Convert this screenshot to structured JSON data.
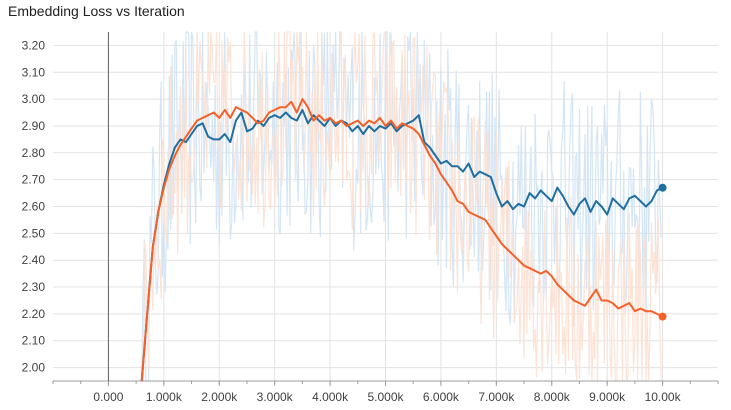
{
  "chart_data": {
    "type": "line",
    "title": "Embedding Loss vs Iteration",
    "xlabel": "",
    "ylabel": "",
    "xlim": [
      -1000,
      11000
    ],
    "ylim": [
      1.95,
      3.25
    ],
    "grid": true,
    "x_ticks": [
      0,
      1000,
      2000,
      3000,
      4000,
      5000,
      6000,
      7000,
      8000,
      9000,
      10000
    ],
    "x_tick_labels": [
      "0.000",
      "1.000k",
      "2.000k",
      "3.000k",
      "4.000k",
      "5.000k",
      "6.000k",
      "7.000k",
      "8.000k",
      "9.000k",
      "10.00k"
    ],
    "y_ticks": [
      2.0,
      2.1,
      2.2,
      2.3,
      2.4,
      2.5,
      2.6,
      2.7,
      2.8,
      2.9,
      3.0,
      3.1,
      3.2
    ],
    "y_tick_labels": [
      "2.00",
      "2.10",
      "2.20",
      "2.30",
      "2.40",
      "2.50",
      "2.60",
      "2.70",
      "2.80",
      "2.90",
      "3.00",
      "3.10",
      "3.20"
    ],
    "series": [
      {
        "color": "#1f6fa0",
        "raw_color": "#cfe3f5",
        "x": [
          600,
          700,
          800,
          900,
          1000,
          1100,
          1200,
          1300,
          1400,
          1500,
          1600,
          1700,
          1800,
          1900,
          2000,
          2100,
          2200,
          2300,
          2400,
          2500,
          2600,
          2700,
          2800,
          2900,
          3000,
          3100,
          3200,
          3300,
          3400,
          3500,
          3600,
          3700,
          3800,
          3900,
          4000,
          4100,
          4200,
          4300,
          4400,
          4500,
          4600,
          4700,
          4800,
          4900,
          5000,
          5100,
          5200,
          5300,
          5400,
          5500,
          5600,
          5700,
          5800,
          5900,
          6000,
          6100,
          6200,
          6300,
          6400,
          6500,
          6600,
          6700,
          6800,
          6900,
          7000,
          7100,
          7200,
          7300,
          7400,
          7500,
          7600,
          7700,
          7800,
          7900,
          8000,
          8100,
          8200,
          8300,
          8400,
          8500,
          8600,
          8700,
          8800,
          8900,
          9000,
          9100,
          9200,
          9300,
          9400,
          9500,
          9600,
          9700,
          9800,
          9900,
          10000
        ],
        "y": [
          1.95,
          2.2,
          2.45,
          2.58,
          2.68,
          2.76,
          2.82,
          2.85,
          2.84,
          2.87,
          2.9,
          2.91,
          2.86,
          2.85,
          2.85,
          2.87,
          2.84,
          2.92,
          2.95,
          2.88,
          2.89,
          2.92,
          2.9,
          2.93,
          2.94,
          2.93,
          2.95,
          2.93,
          2.92,
          2.96,
          2.91,
          2.94,
          2.92,
          2.9,
          2.93,
          2.9,
          2.92,
          2.91,
          2.88,
          2.9,
          2.87,
          2.9,
          2.88,
          2.9,
          2.89,
          2.91,
          2.88,
          2.9,
          2.91,
          2.92,
          2.94,
          2.84,
          2.82,
          2.79,
          2.76,
          2.77,
          2.75,
          2.75,
          2.73,
          2.76,
          2.71,
          2.73,
          2.72,
          2.71,
          2.65,
          2.6,
          2.62,
          2.59,
          2.61,
          2.6,
          2.65,
          2.63,
          2.66,
          2.64,
          2.62,
          2.67,
          2.64,
          2.6,
          2.57,
          2.61,
          2.63,
          2.58,
          2.62,
          2.6,
          2.57,
          2.63,
          2.61,
          2.59,
          2.63,
          2.64,
          2.62,
          2.6,
          2.62,
          2.66,
          2.67
        ]
      },
      {
        "color": "#f4612b",
        "raw_color": "#fde0d2",
        "x": [
          600,
          700,
          800,
          900,
          1000,
          1100,
          1200,
          1300,
          1400,
          1500,
          1600,
          1700,
          1800,
          1900,
          2000,
          2100,
          2200,
          2300,
          2400,
          2500,
          2600,
          2700,
          2800,
          2900,
          3000,
          3100,
          3200,
          3300,
          3400,
          3500,
          3600,
          3700,
          3800,
          3900,
          4000,
          4100,
          4200,
          4300,
          4400,
          4500,
          4600,
          4700,
          4800,
          4900,
          5000,
          5100,
          5200,
          5300,
          5400,
          5500,
          5600,
          5700,
          5800,
          5900,
          6000,
          6100,
          6200,
          6300,
          6400,
          6500,
          6600,
          6700,
          6800,
          6900,
          7000,
          7100,
          7200,
          7300,
          7400,
          7500,
          7600,
          7700,
          7800,
          7900,
          8000,
          8100,
          8200,
          8300,
          8400,
          8500,
          8600,
          8700,
          8800,
          8900,
          9000,
          9100,
          9200,
          9300,
          9400,
          9500,
          9600,
          9700,
          9800,
          9900,
          10000
        ],
        "y": [
          1.95,
          2.2,
          2.45,
          2.58,
          2.67,
          2.74,
          2.79,
          2.83,
          2.86,
          2.89,
          2.92,
          2.93,
          2.94,
          2.95,
          2.93,
          2.96,
          2.93,
          2.97,
          2.96,
          2.95,
          2.93,
          2.91,
          2.92,
          2.95,
          2.96,
          2.97,
          2.97,
          2.99,
          2.95,
          3.0,
          2.97,
          2.92,
          2.94,
          2.92,
          2.93,
          2.91,
          2.92,
          2.9,
          2.91,
          2.92,
          2.9,
          2.92,
          2.91,
          2.93,
          2.9,
          2.92,
          2.89,
          2.91,
          2.9,
          2.89,
          2.87,
          2.83,
          2.79,
          2.76,
          2.72,
          2.69,
          2.66,
          2.62,
          2.61,
          2.58,
          2.57,
          2.56,
          2.55,
          2.52,
          2.49,
          2.46,
          2.44,
          2.42,
          2.4,
          2.38,
          2.37,
          2.36,
          2.35,
          2.36,
          2.34,
          2.31,
          2.29,
          2.27,
          2.25,
          2.24,
          2.23,
          2.26,
          2.29,
          2.25,
          2.25,
          2.24,
          2.22,
          2.23,
          2.24,
          2.21,
          2.22,
          2.21,
          2.21,
          2.2,
          2.19
        ]
      }
    ]
  }
}
